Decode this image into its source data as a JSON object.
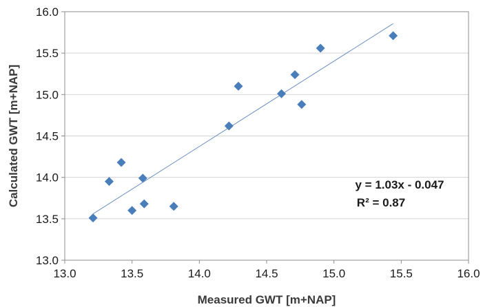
{
  "chart_data": {
    "type": "scatter",
    "xlabel": "Measured GWT  [m+NAP]",
    "ylabel": "Calculated GWT  [m+NAP]",
    "xlim": [
      13.0,
      16.0
    ],
    "ylim": [
      13.0,
      16.0
    ],
    "x_ticks": [
      "13.0",
      "13.5",
      "14.0",
      "14.5",
      "15.0",
      "15.5",
      "16.0"
    ],
    "y_ticks": [
      "13.0",
      "13.5",
      "14.0",
      "14.5",
      "15.0",
      "15.5",
      "16.0"
    ],
    "grid": "horizontal",
    "marker_color": "#4a7ebb",
    "trendline_color": "#6a8fc0",
    "points": [
      {
        "x": 13.21,
        "y": 13.51
      },
      {
        "x": 13.33,
        "y": 13.95
      },
      {
        "x": 13.42,
        "y": 14.18
      },
      {
        "x": 13.5,
        "y": 13.6
      },
      {
        "x": 13.58,
        "y": 13.99
      },
      {
        "x": 13.59,
        "y": 13.68
      },
      {
        "x": 13.81,
        "y": 13.65
      },
      {
        "x": 14.22,
        "y": 14.62
      },
      {
        "x": 14.29,
        "y": 15.1
      },
      {
        "x": 14.61,
        "y": 15.01
      },
      {
        "x": 14.71,
        "y": 15.24
      },
      {
        "x": 14.76,
        "y": 14.88
      },
      {
        "x": 14.9,
        "y": 15.56
      },
      {
        "x": 15.44,
        "y": 15.71
      }
    ],
    "trendline": {
      "slope": 1.03,
      "intercept": -0.047,
      "x_range": [
        13.21,
        15.44
      ]
    },
    "annotations": [
      "y = 1.03x - 0.047",
      "R² = 0.87"
    ]
  }
}
